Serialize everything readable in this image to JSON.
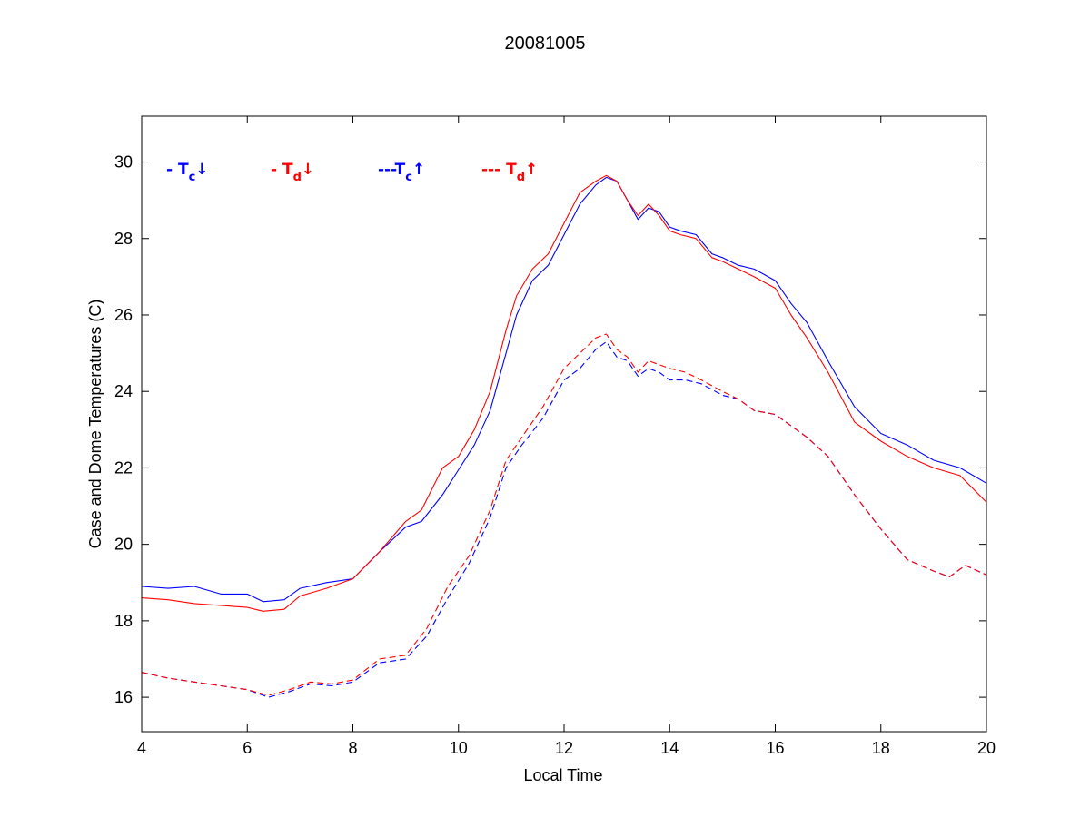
{
  "chart_data": {
    "type": "line",
    "title": "20081005",
    "xlabel": "Local Time",
    "ylabel": "Case and Dome Temperatures (C)",
    "xlim": [
      4,
      20
    ],
    "ylim": [
      15.1,
      31.2
    ],
    "xticks": [
      4,
      6,
      8,
      10,
      12,
      14,
      16,
      18,
      20
    ],
    "yticks": [
      16,
      18,
      20,
      22,
      24,
      26,
      28,
      30
    ],
    "grid": false,
    "legend_placement": "top-left, inside plot, horizontal",
    "legend": [
      {
        "prefix": "- T",
        "sub": "c",
        "arrow": "↓",
        "color": "#0000ff"
      },
      {
        "prefix": "- T",
        "sub": "d",
        "arrow": "↓",
        "color": "#ff0000"
      },
      {
        "prefix": "---T",
        "sub": "c",
        "arrow": "↑",
        "color": "#0000ff"
      },
      {
        "prefix": "--- T",
        "sub": "d",
        "arrow": "↑",
        "color": "#ff0000"
      }
    ],
    "series": [
      {
        "color": "#0000ff",
        "style": "solid",
        "x": [
          4,
          4.5,
          5,
          5.5,
          6,
          6.3,
          6.7,
          7,
          7.5,
          8,
          8.5,
          9,
          9.3,
          9.7,
          10,
          10.3,
          10.6,
          10.9,
          11.1,
          11.4,
          11.7,
          12,
          12.3,
          12.6,
          12.8,
          13,
          13.2,
          13.4,
          13.6,
          13.8,
          14,
          14.2,
          14.5,
          14.8,
          15,
          15.3,
          15.6,
          16,
          16.3,
          16.6,
          17,
          17.5,
          18,
          18.5,
          19,
          19.5,
          20
        ],
        "y": [
          18.9,
          18.85,
          18.9,
          18.7,
          18.7,
          18.5,
          18.55,
          18.85,
          19.0,
          19.1,
          19.8,
          20.45,
          20.6,
          21.3,
          21.95,
          22.6,
          23.5,
          25.0,
          26.0,
          26.9,
          27.3,
          28.1,
          28.9,
          29.4,
          29.6,
          29.5,
          29.0,
          28.5,
          28.8,
          28.7,
          28.3,
          28.2,
          28.1,
          27.6,
          27.5,
          27.3,
          27.2,
          26.9,
          26.3,
          25.8,
          24.8,
          23.6,
          22.9,
          22.6,
          22.2,
          22.0,
          21.6
        ]
      },
      {
        "color": "#ff0000",
        "style": "solid",
        "x": [
          4,
          4.5,
          5,
          5.5,
          6,
          6.3,
          6.7,
          7,
          7.5,
          8,
          8.5,
          9,
          9.3,
          9.7,
          10,
          10.3,
          10.6,
          10.9,
          11.1,
          11.4,
          11.7,
          12,
          12.3,
          12.6,
          12.8,
          13,
          13.2,
          13.4,
          13.6,
          13.8,
          14,
          14.2,
          14.5,
          14.8,
          15,
          15.3,
          15.6,
          16,
          16.3,
          16.6,
          17,
          17.5,
          18,
          18.5,
          19,
          19.5,
          20
        ],
        "y": [
          18.6,
          18.55,
          18.45,
          18.4,
          18.35,
          18.25,
          18.3,
          18.65,
          18.85,
          19.1,
          19.8,
          20.6,
          20.9,
          22.0,
          22.3,
          23.0,
          24.0,
          25.6,
          26.5,
          27.2,
          27.6,
          28.4,
          29.2,
          29.5,
          29.65,
          29.5,
          29.0,
          28.6,
          28.9,
          28.6,
          28.2,
          28.1,
          28.0,
          27.5,
          27.4,
          27.2,
          27.0,
          26.7,
          26.0,
          25.4,
          24.5,
          23.2,
          22.7,
          22.3,
          22.0,
          21.8,
          21.1
        ]
      },
      {
        "color": "#0000ff",
        "style": "dashed",
        "x": [
          4,
          4.5,
          5,
          5.5,
          6,
          6.4,
          6.8,
          7.2,
          7.6,
          8,
          8.5,
          9,
          9.4,
          9.8,
          10.2,
          10.6,
          10.9,
          11.2,
          11.6,
          12,
          12.3,
          12.6,
          12.8,
          13,
          13.2,
          13.4,
          13.6,
          13.8,
          14,
          14.3,
          14.6,
          15,
          15.3,
          15.6,
          16,
          16.3,
          16.6,
          17,
          17.5,
          18,
          18.5,
          19,
          19.3,
          19.6,
          20
        ],
        "y": [
          16.65,
          16.5,
          16.4,
          16.3,
          16.2,
          16.0,
          16.15,
          16.35,
          16.3,
          16.4,
          16.9,
          17.0,
          17.6,
          18.6,
          19.5,
          20.7,
          22.0,
          22.6,
          23.3,
          24.3,
          24.6,
          25.1,
          25.3,
          24.9,
          24.8,
          24.4,
          24.6,
          24.5,
          24.3,
          24.3,
          24.2,
          23.9,
          23.8,
          23.5,
          23.4,
          23.1,
          22.8,
          22.3,
          21.3,
          20.4,
          19.6,
          19.3,
          19.15,
          19.45,
          19.2
        ]
      },
      {
        "color": "#ff0000",
        "style": "dashed",
        "x": [
          4,
          4.5,
          5,
          5.5,
          6,
          6.4,
          6.8,
          7.2,
          7.6,
          8,
          8.5,
          9,
          9.4,
          9.8,
          10.2,
          10.6,
          10.9,
          11.2,
          11.6,
          12,
          12.3,
          12.6,
          12.8,
          13,
          13.2,
          13.4,
          13.6,
          13.8,
          14,
          14.3,
          14.6,
          15,
          15.3,
          15.6,
          16,
          16.3,
          16.6,
          17,
          17.5,
          18,
          18.5,
          19,
          19.3,
          19.6,
          20
        ],
        "y": [
          16.65,
          16.5,
          16.4,
          16.3,
          16.2,
          16.05,
          16.2,
          16.4,
          16.35,
          16.45,
          17.0,
          17.1,
          17.8,
          18.9,
          19.7,
          20.9,
          22.2,
          22.8,
          23.6,
          24.6,
          25.0,
          25.4,
          25.5,
          25.1,
          24.9,
          24.5,
          24.8,
          24.7,
          24.6,
          24.5,
          24.3,
          24.0,
          23.8,
          23.5,
          23.4,
          23.1,
          22.8,
          22.3,
          21.3,
          20.4,
          19.6,
          19.3,
          19.15,
          19.45,
          19.2
        ]
      }
    ]
  }
}
